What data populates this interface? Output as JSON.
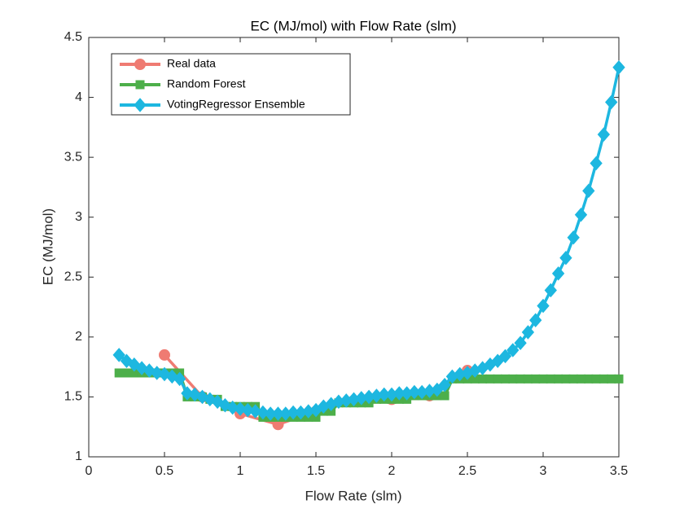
{
  "chart_data": {
    "type": "line",
    "title": "EC (MJ/mol) with Flow Rate (slm)",
    "x_label": "Flow Rate (slm)",
    "y_label": "EC (MJ/mol)",
    "xlim": [
      0,
      3.5
    ],
    "xticks": [
      0,
      0.5,
      1,
      1.5,
      2,
      2.5,
      3,
      3.5
    ],
    "ylim": [
      1,
      4.5
    ],
    "yticks": [
      1,
      1.5,
      2,
      2.5,
      3,
      3.5,
      4,
      4.5
    ],
    "legend": "upper left",
    "series": [
      {
        "name": "Real data",
        "color": "#ef7b72",
        "marker": "circle",
        "x": [
          0.5,
          0.75,
          1,
          1.25,
          1.5,
          1.75,
          2,
          2.25,
          2.5
        ],
        "values": [
          1.85,
          1.5,
          1.36,
          1.27,
          1.38,
          1.47,
          1.48,
          1.51,
          1.72
        ]
      },
      {
        "name": "Random Forest",
        "color": "#4daf4a",
        "marker": "square",
        "x": [
          0.2,
          0.25,
          0.3,
          0.35,
          0.4,
          0.45,
          0.5,
          0.55,
          0.6,
          0.65,
          0.7,
          0.75,
          0.8,
          0.85,
          0.9,
          0.95,
          1,
          1.05,
          1.1,
          1.15,
          1.2,
          1.25,
          1.3,
          1.35,
          1.4,
          1.45,
          1.5,
          1.55,
          1.6,
          1.65,
          1.7,
          1.75,
          1.8,
          1.85,
          1.9,
          1.95,
          2,
          2.05,
          2.1,
          2.15,
          2.2,
          2.25,
          2.3,
          2.35,
          2.4,
          2.45,
          2.5,
          2.55,
          2.6,
          2.65,
          2.7,
          2.75,
          2.8,
          2.85,
          2.9,
          2.95,
          3,
          3.05,
          3.1,
          3.15,
          3.2,
          3.25,
          3.3,
          3.35,
          3.4,
          3.45,
          3.5
        ],
        "values": [
          1.7,
          1.7,
          1.7,
          1.7,
          1.7,
          1.7,
          1.7,
          1.7,
          1.7,
          1.5,
          1.5,
          1.5,
          1.48,
          1.48,
          1.42,
          1.42,
          1.42,
          1.42,
          1.42,
          1.33,
          1.33,
          1.33,
          1.33,
          1.33,
          1.33,
          1.33,
          1.33,
          1.38,
          1.38,
          1.45,
          1.45,
          1.45,
          1.45,
          1.45,
          1.48,
          1.48,
          1.48,
          1.48,
          1.48,
          1.51,
          1.51,
          1.51,
          1.51,
          1.51,
          1.65,
          1.65,
          1.65,
          1.65,
          1.65,
          1.65,
          1.65,
          1.65,
          1.65,
          1.65,
          1.65,
          1.65,
          1.65,
          1.65,
          1.65,
          1.65,
          1.65,
          1.65,
          1.65,
          1.65,
          1.65,
          1.65,
          1.65
        ]
      },
      {
        "name": "VotingRegressor Ensemble",
        "color": "#1db7e0",
        "marker": "diamond",
        "x": [
          0.2,
          0.25,
          0.3,
          0.35,
          0.4,
          0.45,
          0.5,
          0.55,
          0.6,
          0.65,
          0.7,
          0.75,
          0.8,
          0.85,
          0.9,
          0.95,
          1,
          1.05,
          1.1,
          1.15,
          1.2,
          1.25,
          1.3,
          1.35,
          1.4,
          1.45,
          1.5,
          1.55,
          1.6,
          1.65,
          1.7,
          1.75,
          1.8,
          1.85,
          1.9,
          1.95,
          2,
          2.05,
          2.1,
          2.15,
          2.2,
          2.25,
          2.3,
          2.35,
          2.4,
          2.45,
          2.5,
          2.55,
          2.6,
          2.65,
          2.7,
          2.75,
          2.8,
          2.85,
          2.9,
          2.95,
          3,
          3.05,
          3.1,
          3.15,
          3.2,
          3.25,
          3.3,
          3.35,
          3.4,
          3.45,
          3.5
        ],
        "values": [
          1.85,
          1.8,
          1.77,
          1.74,
          1.72,
          1.7,
          1.69,
          1.67,
          1.65,
          1.53,
          1.52,
          1.5,
          1.48,
          1.46,
          1.43,
          1.41,
          1.4,
          1.39,
          1.38,
          1.37,
          1.36,
          1.36,
          1.36,
          1.37,
          1.37,
          1.38,
          1.39,
          1.42,
          1.44,
          1.46,
          1.47,
          1.48,
          1.49,
          1.5,
          1.51,
          1.52,
          1.52,
          1.53,
          1.53,
          1.54,
          1.54,
          1.55,
          1.56,
          1.6,
          1.67,
          1.69,
          1.7,
          1.72,
          1.74,
          1.77,
          1.8,
          1.84,
          1.89,
          1.95,
          2.04,
          2.14,
          2.26,
          2.39,
          2.53,
          2.66,
          2.83,
          3.02,
          3.22,
          3.45,
          3.69,
          3.96,
          4.25
        ]
      }
    ]
  }
}
